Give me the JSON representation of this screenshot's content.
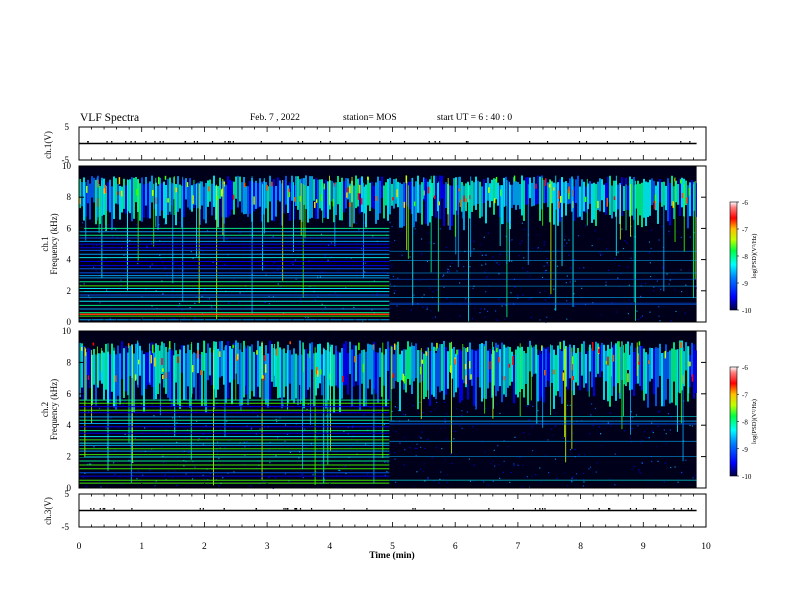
{
  "header": {
    "title": "VLF Spectra",
    "date": "Feb. 7 , 2022",
    "station": "station= MOS",
    "start_ut": "start UT = 6 : 40 : 0"
  },
  "colorbar": {
    "label": "log(PSD)(V²/Hz)",
    "ticks": [
      "-6",
      "-7",
      "-8",
      "-9",
      "-10"
    ],
    "colors": [
      "#000080",
      "#0000ff",
      "#0080ff",
      "#00ffff",
      "#00ff80",
      "#80ff00",
      "#ffff00",
      "#ff8000",
      "#ff0000",
      "#ff8080",
      "#ffffff"
    ]
  },
  "chart_data": [
    {
      "type": "line",
      "name": "ch.1 voltage",
      "ylabel": "ch.1(V)",
      "ylim": [
        -5,
        5
      ],
      "yticks": [
        "5",
        "-5"
      ],
      "baseline_value": 0
    },
    {
      "type": "heatmap",
      "name": "ch.1 spectrogram",
      "ylabel": "ch.1 Frequency (kHz)",
      "ylim": [
        0,
        10
      ],
      "yticks": [
        "0",
        "2",
        "4",
        "6",
        "8",
        "10"
      ],
      "xlim": [
        0,
        10
      ],
      "data_end_min": 9.85,
      "interference_end_min": 4.95,
      "zrange": [
        -10,
        -6
      ]
    },
    {
      "type": "heatmap",
      "name": "ch.2 spectrogram",
      "ylabel": "ch.2 Frequency (kHz)",
      "ylim": [
        0,
        10
      ],
      "yticks": [
        "0",
        "2",
        "4",
        "6",
        "8",
        "10"
      ],
      "xlim": [
        0,
        10
      ],
      "data_end_min": 9.85,
      "interference_end_min": 4.95,
      "zrange": [
        -10,
        -6
      ]
    },
    {
      "type": "line",
      "name": "ch.3 voltage",
      "ylabel": "ch.3(V)",
      "ylim": [
        -5,
        5
      ],
      "yticks": [
        "5",
        "-5"
      ],
      "baseline_value": 0
    }
  ],
  "xaxis": {
    "label": "Time (min)",
    "ticks": [
      "0",
      "1",
      "2",
      "3",
      "4",
      "5",
      "6",
      "7",
      "8",
      "9",
      "10"
    ],
    "xlim": [
      0,
      10
    ]
  }
}
